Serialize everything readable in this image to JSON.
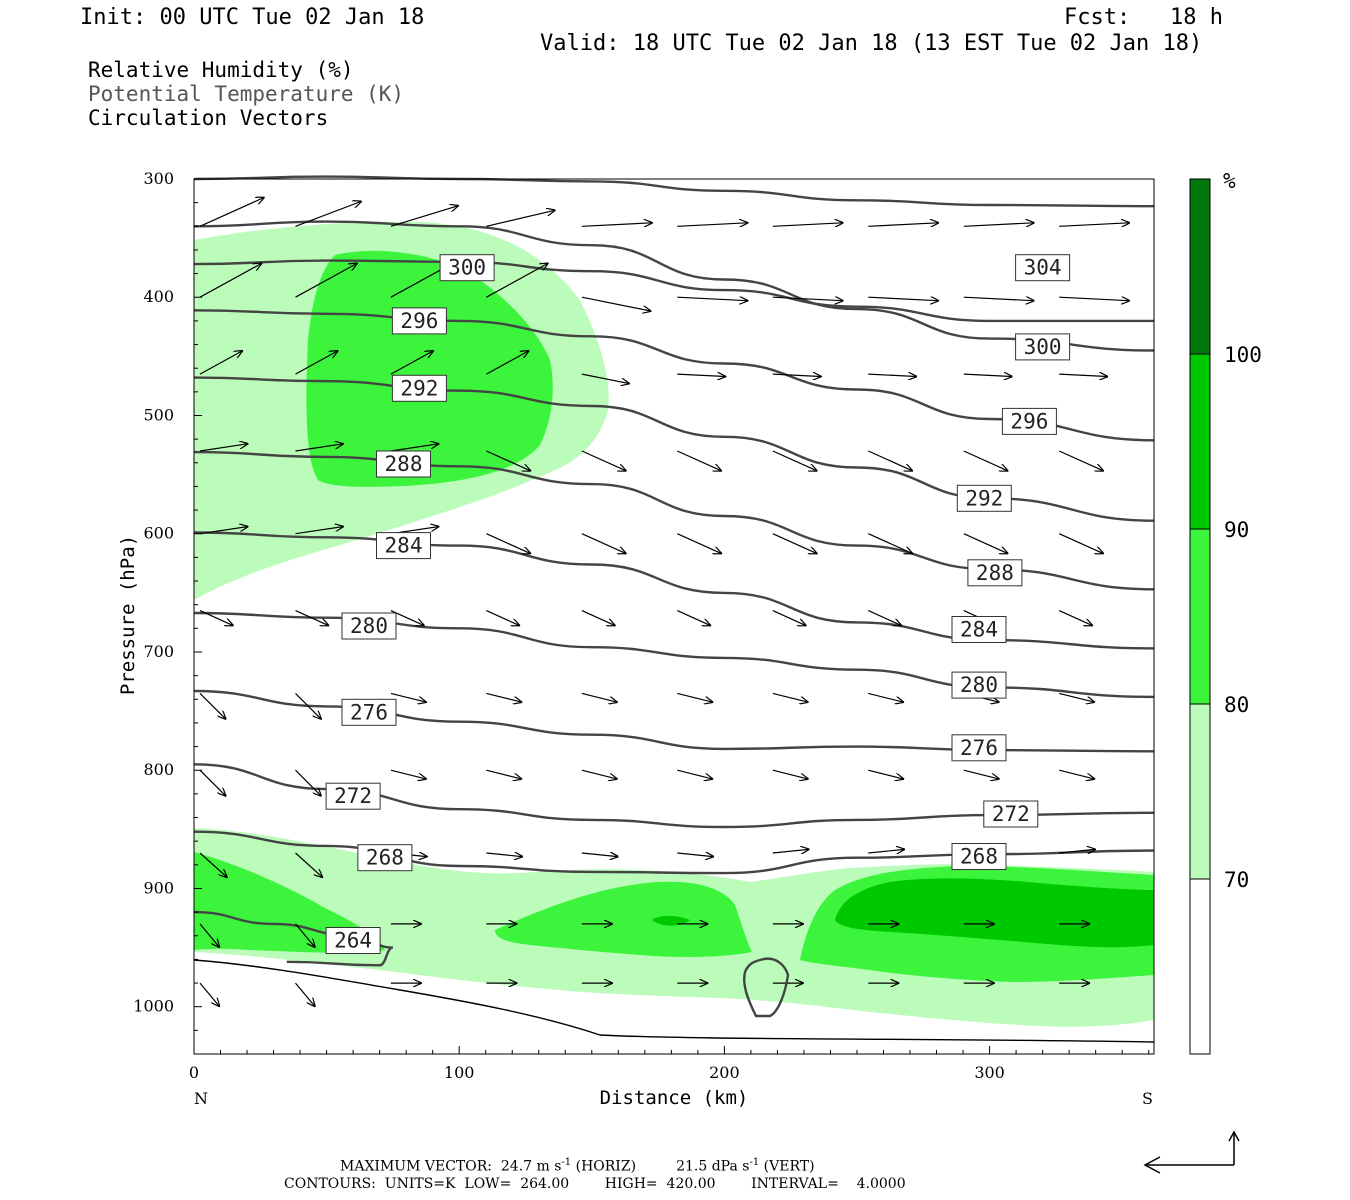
{
  "header": {
    "init": "Init: 00 UTC Tue 02 Jan 18",
    "fcst": "Fcst:   18 h",
    "valid": "Valid: 18 UTC Tue 02 Jan 18 (13 EST Tue 02 Jan 18)"
  },
  "legend": {
    "rh": "Relative Humidity (%)",
    "theta": "Potential Temperature (K)",
    "vectors": "Circulation Vectors"
  },
  "footer": {
    "line1": "MAXIMUM VECTOR:  24.7 m s",
    "line1_sup1": "-1",
    "line1_mid": " (HORIZ)         21.5 dPa s",
    "line1_sup2": "-1",
    "line1_end": " (VERT)",
    "line2": "CONTOURS:  UNITS=K  LOW=  264.00        HIGH=  420.00        INTERVAL=    4.0000"
  },
  "colors": {
    "rh70": "#bbfcbb",
    "rh80": "#3cf43c",
    "rh90": "#00c800",
    "rh100": "#00780a",
    "theta": "#444444"
  },
  "chart_data": {
    "type": "cross-section",
    "xlabel": "Distance (km)",
    "ylabel": "Pressure (hPa)",
    "xlim": [
      0,
      362
    ],
    "ylim": [
      1040,
      300
    ],
    "x_ticks": [
      0,
      100,
      200,
      300
    ],
    "y_ticks": [
      300,
      400,
      500,
      600,
      700,
      800,
      900,
      1000
    ],
    "x_end_labels": {
      "left": "N",
      "right": "S"
    },
    "colorbar": {
      "unit": "%",
      "levels": [
        70,
        80,
        90,
        100
      ]
    },
    "theta_contours": [
      {
        "value": 304,
        "label_at": [
          320,
          375
        ],
        "points": [
          [
            0,
            300
          ],
          [
            50,
            298
          ],
          [
            100,
            300
          ],
          [
            150,
            302
          ],
          [
            200,
            310
          ],
          [
            250,
            318
          ],
          [
            300,
            322
          ],
          [
            362,
            323
          ]
        ]
      },
      {
        "value": 300,
        "label_at": [
          103,
          375
        ],
        "points": [
          [
            0,
            372
          ],
          [
            50,
            369
          ],
          [
            100,
            370
          ],
          [
            150,
            378
          ],
          [
            200,
            394
          ],
          [
            250,
            408
          ],
          [
            300,
            420
          ],
          [
            362,
            420
          ]
        ]
      },
      {
        "value": 300,
        "label_at": [
          320,
          442
        ],
        "points": [
          [
            0,
            340
          ],
          [
            50,
            336
          ],
          [
            100,
            340
          ],
          [
            150,
            356
          ],
          [
            200,
            385
          ],
          [
            250,
            410
          ],
          [
            300,
            435
          ],
          [
            362,
            445
          ]
        ]
      },
      {
        "value": 296,
        "label_at": [
          85,
          420
        ],
        "points": [
          [
            0,
            411
          ],
          [
            50,
            414
          ],
          [
            100,
            420
          ],
          [
            150,
            433
          ],
          [
            200,
            456
          ],
          [
            250,
            478
          ],
          [
            300,
            503
          ],
          [
            362,
            521
          ]
        ]
      },
      {
        "value": 292,
        "label_at": [
          85,
          477
        ],
        "points": [
          [
            0,
            468
          ],
          [
            50,
            471
          ],
          [
            100,
            479
          ],
          [
            150,
            492
          ],
          [
            200,
            518
          ],
          [
            250,
            544
          ],
          [
            300,
            570
          ],
          [
            362,
            589
          ]
        ]
      },
      {
        "value": 288,
        "label_at": [
          79,
          541
        ],
        "points": [
          [
            0,
            531
          ],
          [
            50,
            535
          ],
          [
            100,
            543
          ],
          [
            150,
            558
          ],
          [
            200,
            585
          ],
          [
            250,
            610
          ],
          [
            300,
            630
          ],
          [
            362,
            647
          ]
        ]
      },
      {
        "value": 284,
        "label_at": [
          79,
          610
        ],
        "points": [
          [
            0,
            599
          ],
          [
            50,
            603
          ],
          [
            100,
            610
          ],
          [
            150,
            626
          ],
          [
            200,
            650
          ],
          [
            250,
            675
          ],
          [
            300,
            690
          ],
          [
            362,
            697
          ]
        ]
      },
      {
        "value": 280,
        "label_at": [
          66,
          678
        ],
        "points": [
          [
            0,
            667
          ],
          [
            50,
            671
          ],
          [
            100,
            680
          ],
          [
            150,
            696
          ],
          [
            200,
            705
          ],
          [
            250,
            715
          ],
          [
            300,
            730
          ],
          [
            362,
            738
          ]
        ]
      },
      {
        "value": 276,
        "label_at": [
          66,
          751
        ],
        "points": [
          [
            0,
            733
          ],
          [
            50,
            746
          ],
          [
            100,
            759
          ],
          [
            150,
            770
          ],
          [
            200,
            782
          ],
          [
            250,
            780
          ],
          [
            300,
            783
          ],
          [
            362,
            784
          ]
        ]
      },
      {
        "value": 272,
        "label_at": [
          60,
          822
        ],
        "points": [
          [
            0,
            795
          ],
          [
            50,
            816
          ],
          [
            100,
            833
          ],
          [
            150,
            842
          ],
          [
            200,
            848
          ],
          [
            250,
            842
          ],
          [
            300,
            838
          ],
          [
            362,
            836
          ]
        ]
      },
      {
        "value": 268,
        "label_at": [
          72,
          874
        ],
        "points": [
          [
            0,
            852
          ],
          [
            50,
            864
          ],
          [
            100,
            881
          ],
          [
            150,
            886
          ],
          [
            200,
            887
          ],
          [
            250,
            874
          ],
          [
            300,
            871
          ],
          [
            362,
            868
          ]
        ]
      },
      {
        "value": 264,
        "label_at": [
          60,
          944
        ],
        "points": [
          [
            0,
            920
          ],
          [
            30,
            930
          ],
          [
            60,
            940
          ],
          [
            75,
            950
          ],
          [
            70,
            965
          ],
          [
            35,
            962
          ]
        ]
      }
    ],
    "theta_contour_labels": [
      {
        "text": "304",
        "x": 320,
        "p": 375
      },
      {
        "text": "300",
        "x": 103,
        "p": 375
      },
      {
        "text": "300",
        "x": 320,
        "p": 442
      },
      {
        "text": "296",
        "x": 85,
        "p": 420
      },
      {
        "text": "296",
        "x": 315,
        "p": 505
      },
      {
        "text": "292",
        "x": 85,
        "p": 477
      },
      {
        "text": "292",
        "x": 298,
        "p": 570
      },
      {
        "text": "288",
        "x": 79,
        "p": 541
      },
      {
        "text": "288",
        "x": 302,
        "p": 633
      },
      {
        "text": "284",
        "x": 79,
        "p": 610
      },
      {
        "text": "284",
        "x": 296,
        "p": 681
      },
      {
        "text": "280",
        "x": 66,
        "p": 678
      },
      {
        "text": "280",
        "x": 296,
        "p": 728
      },
      {
        "text": "276",
        "x": 66,
        "p": 751
      },
      {
        "text": "276",
        "x": 296,
        "p": 781
      },
      {
        "text": "272",
        "x": 60,
        "p": 822
      },
      {
        "text": "272",
        "x": 308,
        "p": 837
      },
      {
        "text": "268",
        "x": 72,
        "p": 874
      },
      {
        "text": "268",
        "x": 296,
        "p": 873
      },
      {
        "text": "264",
        "x": 60,
        "p": 944
      }
    ]
  }
}
